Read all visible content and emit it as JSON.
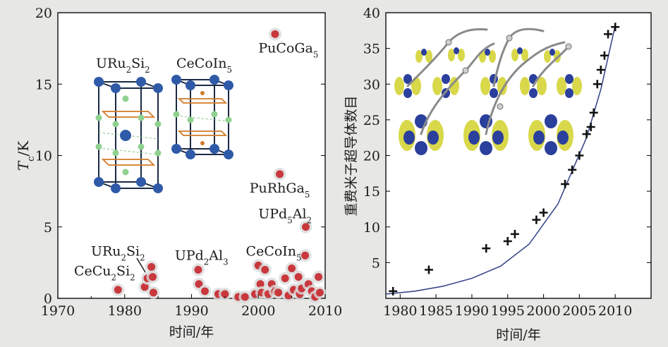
{
  "chart_data": [
    {
      "type": "scatter",
      "title": "",
      "xlabel": "时间/年",
      "ylabel_main": "T",
      "ylabel_sub": "c",
      "ylabel_unit": "/K",
      "xlim": [
        1970,
        2010
      ],
      "ylim": [
        0,
        20
      ],
      "xticks": [
        1970,
        1980,
        1990,
        2000,
        2010
      ],
      "yticks": [
        0,
        5,
        10,
        15,
        20
      ],
      "marker_color": "#c8383d",
      "points": [
        {
          "x": 1979.0,
          "y": 0.6
        },
        {
          "x": 1983.0,
          "y": 0.8
        },
        {
          "x": 1983.4,
          "y": 1.4
        },
        {
          "x": 1984.0,
          "y": 2.2
        },
        {
          "x": 1984.2,
          "y": 1.5
        },
        {
          "x": 1984.3,
          "y": 0.4
        },
        {
          "x": 1991.0,
          "y": 2.0
        },
        {
          "x": 1991.1,
          "y": 1.0
        },
        {
          "x": 1992.0,
          "y": 0.5
        },
        {
          "x": 1994.0,
          "y": 0.3
        },
        {
          "x": 1995.0,
          "y": 0.3
        },
        {
          "x": 1997.0,
          "y": 0.1
        },
        {
          "x": 1998.0,
          "y": 0.1
        },
        {
          "x": 1999.5,
          "y": 0.3
        },
        {
          "x": 2000.0,
          "y": 2.3
        },
        {
          "x": 2000.3,
          "y": 1.0
        },
        {
          "x": 2000.5,
          "y": 0.4
        },
        {
          "x": 2001.0,
          "y": 2.0
        },
        {
          "x": 2001.5,
          "y": 0.3
        },
        {
          "x": 2002.0,
          "y": 1.0
        },
        {
          "x": 2002.5,
          "y": 0.5
        },
        {
          "x": 2002.5,
          "y": 18.5
        },
        {
          "x": 2003.0,
          "y": 0.4
        },
        {
          "x": 2003.2,
          "y": 8.7
        },
        {
          "x": 2004.0,
          "y": 1.4
        },
        {
          "x": 2004.5,
          "y": 0.2
        },
        {
          "x": 2005.0,
          "y": 2.1
        },
        {
          "x": 2005.3,
          "y": 0.6
        },
        {
          "x": 2006.0,
          "y": 1.5
        },
        {
          "x": 2006.2,
          "y": 0.3
        },
        {
          "x": 2006.5,
          "y": 0.7
        },
        {
          "x": 2007.0,
          "y": 3.0
        },
        {
          "x": 2007.1,
          "y": 5.0
        },
        {
          "x": 2007.5,
          "y": 1.0
        },
        {
          "x": 2008.0,
          "y": 0.5
        },
        {
          "x": 2008.5,
          "y": 0.1
        },
        {
          "x": 2009.0,
          "y": 1.5
        },
        {
          "x": 2009.2,
          "y": 0.4
        }
      ],
      "annotations": [
        {
          "parts": [
            "PuCoGa",
            "5"
          ],
          "x": 2004.5,
          "y": 17.2
        },
        {
          "parts": [
            "PuRhGa",
            "5"
          ],
          "x": 2003.2,
          "y": 7.4
        },
        {
          "parts": [
            "UPd",
            "5",
            "Al",
            "2"
          ],
          "x": 2004.0,
          "y": 5.6
        },
        {
          "parts": [
            "CeCoIn",
            "5"
          ],
          "x": 2002.3,
          "y": 3.0
        },
        {
          "parts": [
            "UPd",
            "2",
            "Al",
            "3"
          ],
          "x": 1991.5,
          "y": 2.7
        },
        {
          "parts": [
            "URu",
            "2",
            "Si",
            "2"
          ],
          "x": 1979.0,
          "y": 3.0
        },
        {
          "parts": [
            "CeCu",
            "2",
            "Si",
            "2"
          ],
          "x": 1977.0,
          "y": 1.6
        }
      ],
      "inset_labels": [
        {
          "parts": [
            "URu",
            "2",
            "Si",
            "2"
          ]
        },
        {
          "parts": [
            "CeCoIn",
            "5"
          ]
        }
      ]
    },
    {
      "type": "scatter",
      "title": "",
      "xlabel": "时间/年",
      "ylabel": "重费米子超导体数目",
      "xlim": [
        1978,
        2015
      ],
      "ylim": [
        0,
        40
      ],
      "xticks": [
        1980,
        1985,
        1990,
        1995,
        2000,
        2005,
        2010
      ],
      "yticks": [
        5,
        10,
        15,
        20,
        25,
        30,
        35,
        40
      ],
      "marker": "plus",
      "points": [
        {
          "x": 1979,
          "y": 1
        },
        {
          "x": 1984,
          "y": 4
        },
        {
          "x": 1992,
          "y": 7
        },
        {
          "x": 1995,
          "y": 8
        },
        {
          "x": 1996,
          "y": 9
        },
        {
          "x": 1999,
          "y": 11
        },
        {
          "x": 2000,
          "y": 12
        },
        {
          "x": 2003,
          "y": 16
        },
        {
          "x": 2004,
          "y": 18
        },
        {
          "x": 2005,
          "y": 20
        },
        {
          "x": 2006,
          "y": 23
        },
        {
          "x": 2006.6,
          "y": 24
        },
        {
          "x": 2007,
          "y": 26
        },
        {
          "x": 2007.5,
          "y": 30
        },
        {
          "x": 2008,
          "y": 32
        },
        {
          "x": 2008.5,
          "y": 34
        },
        {
          "x": 2009,
          "y": 37
        },
        {
          "x": 2010,
          "y": 38
        }
      ],
      "fit": {
        "name": "exponential fit",
        "color": "#3b4a8c",
        "points": [
          [
            1978,
            0.6
          ],
          [
            1982,
            1.0
          ],
          [
            1986,
            1.7
          ],
          [
            1990,
            2.8
          ],
          [
            1994,
            4.5
          ],
          [
            1998,
            7.6
          ],
          [
            2002,
            13.2
          ],
          [
            2006,
            22.5
          ],
          [
            2008,
            29.3
          ],
          [
            2010,
            38.2
          ]
        ]
      }
    }
  ]
}
